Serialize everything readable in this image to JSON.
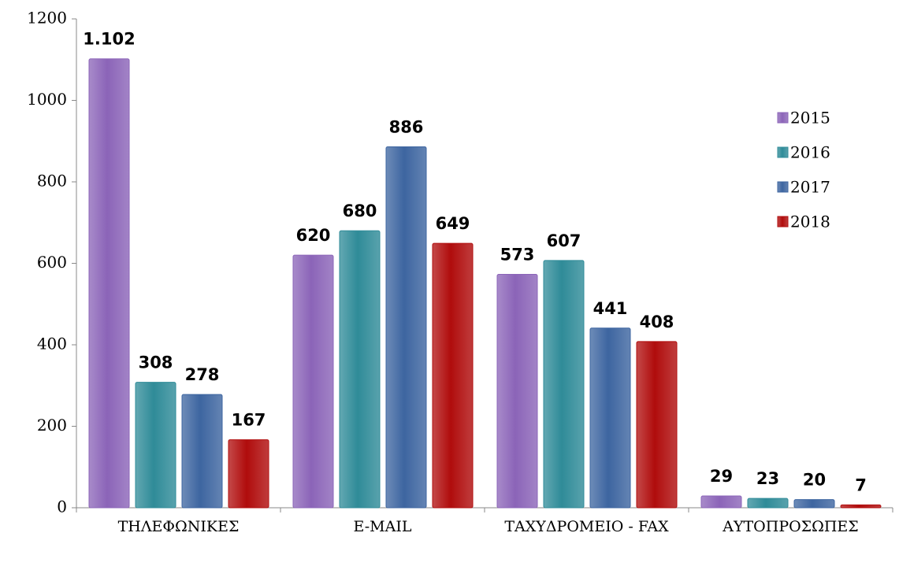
{
  "chart_data": {
    "type": "bar",
    "categories": [
      "ΤΗΛΕΦΩΝΙΚΕΣ",
      "E-MAIL",
      "ΤΑΧΥΔΡΟΜΕΙΟ - FAX",
      "ΑΥΤΟΠΡΟΣΩΠΕΣ"
    ],
    "series": [
      {
        "name": "2015",
        "color": "#8b64b8",
        "values": [
          1102,
          620,
          573,
          29
        ],
        "value_labels": [
          "1.102",
          "620",
          "573",
          "29"
        ]
      },
      {
        "name": "2016",
        "color": "#2f8b98",
        "values": [
          308,
          680,
          607,
          23
        ]
      },
      {
        "name": "2017",
        "color": "#3d65a0",
        "values": [
          278,
          886,
          441,
          20
        ]
      },
      {
        "name": "2018",
        "color": "#b00c0c",
        "values": [
          167,
          649,
          408,
          7
        ]
      }
    ],
    "ylim": [
      0,
      1200
    ],
    "yticks": [
      0,
      200,
      400,
      600,
      800,
      1000,
      1200
    ],
    "grid": false,
    "legend": "right"
  }
}
